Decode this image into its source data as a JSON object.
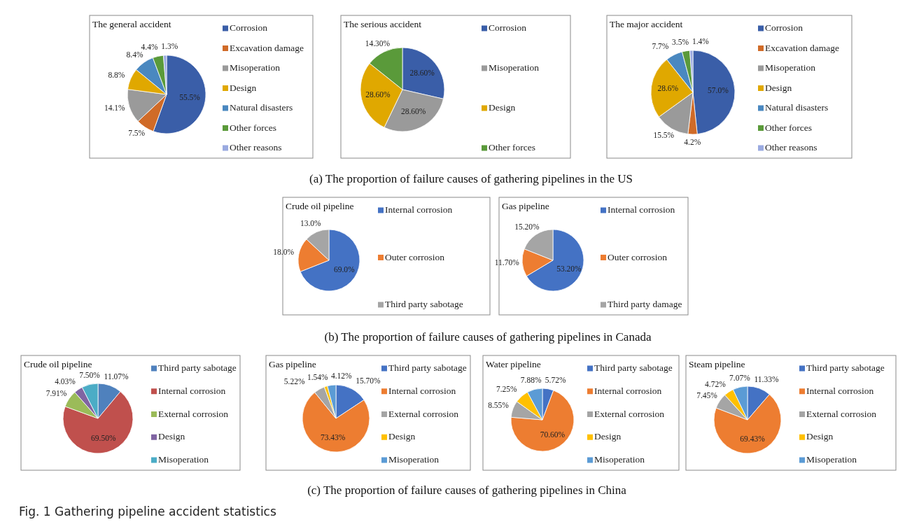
{
  "chart_data": [
    {
      "type": "pie",
      "title": "The general accident",
      "legend": "right",
      "categories": [
        "Corrosion",
        "Excavation damage",
        "Misoperation",
        "Design",
        "Natural disasters",
        "Other forces",
        "Other reasons"
      ],
      "values": [
        55.5,
        7.5,
        14.1,
        8.8,
        8.4,
        4.4,
        1.3
      ],
      "colors": [
        "#3a5ea8",
        "#d06b28",
        "#9a9a9a",
        "#e0a800",
        "#4a88c0",
        "#5a9a3a",
        "#9aaae0"
      ],
      "value_labels": [
        "55.5%",
        "7.5%",
        "14.1%",
        "8.8%",
        "8.4%",
        "4.4%",
        "1.3%"
      ],
      "annotations": [
        "(a) The proportion of failure causes of gathering pipelines in the US"
      ]
    },
    {
      "type": "pie",
      "title": "The serious accident",
      "legend": "right",
      "categories": [
        "Corrosion",
        "Misoperation",
        "Design",
        "Other forces"
      ],
      "values": [
        28.6,
        28.6,
        28.6,
        14.3
      ],
      "colors": [
        "#3a5ea8",
        "#9a9a9a",
        "#e0a800",
        "#5a9a3a"
      ],
      "value_labels": [
        "28.60%",
        "28.60%",
        "28.60%",
        "14.30%"
      ]
    },
    {
      "type": "pie",
      "title": "The major accident",
      "legend": "right",
      "categories": [
        "Corrosion",
        "Excavation damage",
        "Misoperation",
        "Design",
        "Natural disasters",
        "Other forces",
        "Other reasons"
      ],
      "values": [
        57.0,
        4.2,
        15.5,
        28.6,
        7.7,
        3.5,
        1.4
      ],
      "colors": [
        "#3a5ea8",
        "#d06b28",
        "#9a9a9a",
        "#e0a800",
        "#4a88c0",
        "#5a9a3a",
        "#9aaae0"
      ],
      "value_labels": [
        "57.0%",
        "4.2%",
        "15.5%",
        "28.6%",
        "7.7%",
        "3.5%",
        "1.4%"
      ]
    },
    {
      "type": "pie",
      "title": "Crude oil pipeline",
      "legend": "right",
      "categories": [
        "Internal corrosion",
        "Outer corrosion",
        "Third party sabotage"
      ],
      "values": [
        69.0,
        18.0,
        13.0
      ],
      "colors": [
        "#4472c4",
        "#ed7d31",
        "#a5a5a5"
      ],
      "value_labels": [
        "69.0%",
        "18.0%",
        "13.0%"
      ],
      "annotations": [
        "(b) The proportion of failure causes of gathering pipelines in Canada"
      ]
    },
    {
      "type": "pie",
      "title": "Gas pipeline",
      "legend": "right",
      "categories": [
        "Internal corrosion",
        "Outer corrosion",
        "Third party damage"
      ],
      "values": [
        53.2,
        11.7,
        15.2
      ],
      "colors": [
        "#4472c4",
        "#ed7d31",
        "#a5a5a5"
      ],
      "value_labels": [
        "53.20%",
        "11.70%",
        "15.20%"
      ]
    },
    {
      "type": "pie",
      "title": "Crude oil pipeline",
      "legend": "right",
      "categories": [
        "Third party sabotage",
        "Internal corrosion",
        "External corrosion",
        "Design",
        "Misoperation"
      ],
      "values": [
        11.07,
        69.5,
        7.91,
        4.03,
        7.5
      ],
      "colors": [
        "#4f81bd",
        "#c0504d",
        "#9bbb59",
        "#8064a2",
        "#4bacc6"
      ],
      "value_labels": [
        "11.07%",
        "69.50%",
        "7.91%",
        "4.03%",
        "7.50%"
      ],
      "annotations": [
        "(c) The proportion of failure causes of gathering pipelines in China",
        "Fig. 1  Gathering pipeline accident statistics"
      ]
    },
    {
      "type": "pie",
      "title": "Gas pipeline",
      "legend": "right",
      "categories": [
        "Third party sabotage",
        "Internal corrosion",
        "External corrosion",
        "Design",
        "Misoperation"
      ],
      "values": [
        15.7,
        73.43,
        5.22,
        1.54,
        4.12
      ],
      "colors": [
        "#4472c4",
        "#ed7d31",
        "#a5a5a5",
        "#ffc000",
        "#5b9bd5"
      ],
      "value_labels": [
        "15.70%",
        "73.43%",
        "5.22%",
        "1.54%",
        "4.12%"
      ]
    },
    {
      "type": "pie",
      "title": "Water pipeline",
      "legend": "right",
      "categories": [
        "Third party sabotage",
        "Internal corrosion",
        "External corrosion",
        "Design",
        "Misoperation"
      ],
      "values": [
        5.72,
        70.6,
        8.55,
        7.25,
        7.88
      ],
      "colors": [
        "#4472c4",
        "#ed7d31",
        "#a5a5a5",
        "#ffc000",
        "#5b9bd5"
      ],
      "value_labels": [
        "5.72%",
        "70.60%",
        "8.55%",
        "7.25%",
        "7.88%"
      ]
    },
    {
      "type": "pie",
      "title": "Steam pipeline",
      "legend": "right",
      "categories": [
        "Third party sabotage",
        "Internal corrosion",
        "External corrosion",
        "Design",
        "Misoperation"
      ],
      "values": [
        11.33,
        69.43,
        7.45,
        4.72,
        7.07
      ],
      "colors": [
        "#4472c4",
        "#ed7d31",
        "#a5a5a5",
        "#ffc000",
        "#5b9bd5"
      ],
      "value_labels": [
        "11.33%",
        "69.43%",
        "7.45%",
        "4.72%",
        "7.07%"
      ]
    }
  ]
}
